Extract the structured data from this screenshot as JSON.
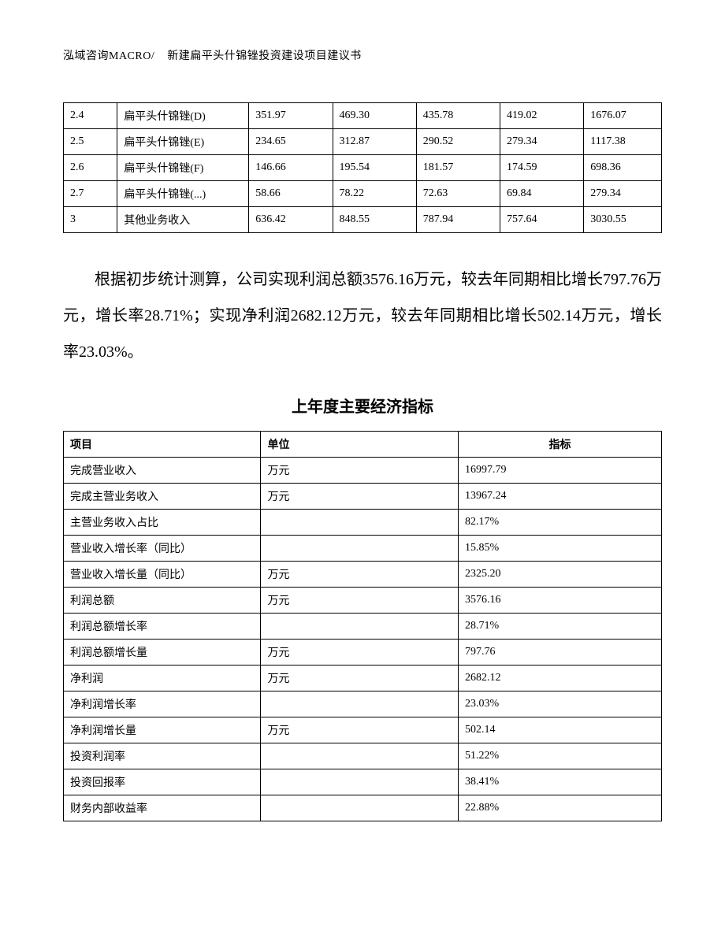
{
  "header": {
    "company": "泓域咨询MACRO/",
    "doc_title": "新建扁平头什锦锉投资建设项目建议书"
  },
  "table1": {
    "columns": [
      "",
      "",
      "",
      "",
      "",
      "",
      ""
    ],
    "rows": [
      [
        "2.4",
        "扁平头什锦锉(D)",
        "351.97",
        "469.30",
        "435.78",
        "419.02",
        "1676.07"
      ],
      [
        "2.5",
        "扁平头什锦锉(E)",
        "234.65",
        "312.87",
        "290.52",
        "279.34",
        "1117.38"
      ],
      [
        "2.6",
        "扁平头什锦锉(F)",
        "146.66",
        "195.54",
        "181.57",
        "174.59",
        "698.36"
      ],
      [
        "2.7",
        "扁平头什锦锉(...)",
        "58.66",
        "78.22",
        "72.63",
        "69.84",
        "279.34"
      ],
      [
        "3",
        "其他业务收入",
        "636.42",
        "848.55",
        "787.94",
        "757.64",
        "3030.55"
      ]
    ]
  },
  "body_text": "根据初步统计测算，公司实现利润总额3576.16万元，较去年同期相比增长797.76万元，增长率28.71%；实现净利润2682.12万元，较去年同期相比增长502.14万元，增长率23.03%。",
  "section_title": "上年度主要经济指标",
  "table2": {
    "header": [
      "项目",
      "单位",
      "指标"
    ],
    "rows": [
      [
        "完成营业收入",
        "万元",
        "16997.79"
      ],
      [
        "完成主营业务收入",
        "万元",
        "13967.24"
      ],
      [
        "主营业务收入占比",
        "",
        "82.17%"
      ],
      [
        "营业收入增长率（同比）",
        "",
        "15.85%"
      ],
      [
        "营业收入增长量（同比）",
        "万元",
        "2325.20"
      ],
      [
        "利润总额",
        "万元",
        "3576.16"
      ],
      [
        "利润总额增长率",
        "",
        "28.71%"
      ],
      [
        "利润总额增长量",
        "万元",
        "797.76"
      ],
      [
        "净利润",
        "万元",
        "2682.12"
      ],
      [
        "净利润增长率",
        "",
        "23.03%"
      ],
      [
        "净利润增长量",
        "万元",
        "502.14"
      ],
      [
        "投资利润率",
        "",
        "51.22%"
      ],
      [
        "投资回报率",
        "",
        "38.41%"
      ],
      [
        "财务内部收益率",
        "",
        "22.88%"
      ]
    ]
  }
}
